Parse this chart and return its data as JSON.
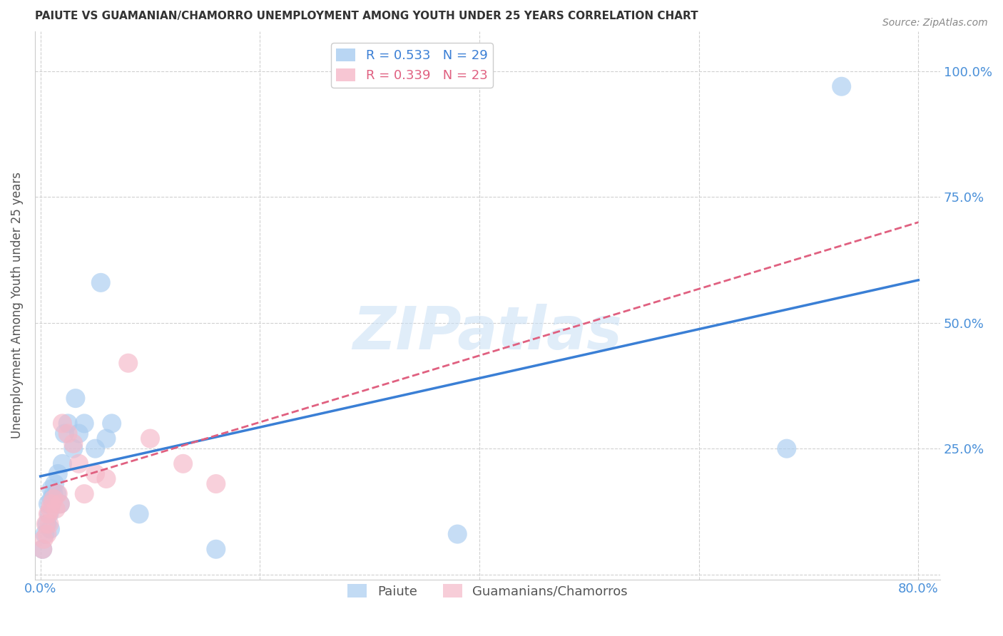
{
  "title": "PAIUTE VS GUAMANIAN/CHAMORRO UNEMPLOYMENT AMONG YOUTH UNDER 25 YEARS CORRELATION CHART",
  "source": "Source: ZipAtlas.com",
  "ylabel": "Unemployment Among Youth under 25 years",
  "xlim": [
    -0.005,
    0.82
  ],
  "ylim": [
    -0.01,
    1.08
  ],
  "xtick_positions": [
    0.0,
    0.2,
    0.4,
    0.6,
    0.8
  ],
  "xtick_labels": [
    "0.0%",
    "",
    "",
    "",
    "80.0%"
  ],
  "ytick_positions": [
    0.0,
    0.25,
    0.5,
    0.75,
    1.0
  ],
  "ytick_labels": [
    "",
    "25.0%",
    "50.0%",
    "75.0%",
    "100.0%"
  ],
  "paiute_color": "#a8ccf0",
  "guam_color": "#f5b8c8",
  "paiute_R": 0.533,
  "paiute_N": 29,
  "guam_R": 0.339,
  "guam_N": 23,
  "legend_label_paiute": "Paiute",
  "legend_label_guam": "Guamanians/Chamorros",
  "watermark_text": "ZIPatlas",
  "paiute_x": [
    0.002,
    0.004,
    0.006,
    0.007,
    0.008,
    0.009,
    0.01,
    0.01,
    0.012,
    0.013,
    0.015,
    0.016,
    0.018,
    0.02,
    0.022,
    0.025,
    0.03,
    0.032,
    0.035,
    0.04,
    0.05,
    0.055,
    0.06,
    0.065,
    0.09,
    0.16,
    0.38,
    0.68,
    0.73
  ],
  "paiute_y": [
    0.05,
    0.08,
    0.1,
    0.14,
    0.12,
    0.09,
    0.15,
    0.17,
    0.16,
    0.18,
    0.16,
    0.2,
    0.14,
    0.22,
    0.28,
    0.3,
    0.25,
    0.35,
    0.28,
    0.3,
    0.25,
    0.58,
    0.27,
    0.3,
    0.12,
    0.05,
    0.08,
    0.25,
    0.97
  ],
  "guam_x": [
    0.002,
    0.003,
    0.005,
    0.006,
    0.007,
    0.008,
    0.009,
    0.01,
    0.012,
    0.014,
    0.016,
    0.018,
    0.02,
    0.025,
    0.03,
    0.035,
    0.04,
    0.05,
    0.06,
    0.08,
    0.1,
    0.13,
    0.16
  ],
  "guam_y": [
    0.05,
    0.07,
    0.1,
    0.08,
    0.12,
    0.1,
    0.13,
    0.14,
    0.15,
    0.13,
    0.16,
    0.14,
    0.3,
    0.28,
    0.26,
    0.22,
    0.16,
    0.2,
    0.19,
    0.42,
    0.27,
    0.22,
    0.18
  ],
  "blue_line_x": [
    0.0,
    0.8
  ],
  "blue_line_y": [
    0.195,
    0.585
  ],
  "pink_line_x": [
    0.0,
    0.8
  ],
  "pink_line_y": [
    0.17,
    0.7
  ],
  "line_color_blue": "#3a7fd5",
  "line_color_pink": "#e06080",
  "grid_color": "#d0d0d0",
  "axis_tick_color": "#4a90d9",
  "title_color": "#333333",
  "ylabel_color": "#555555"
}
